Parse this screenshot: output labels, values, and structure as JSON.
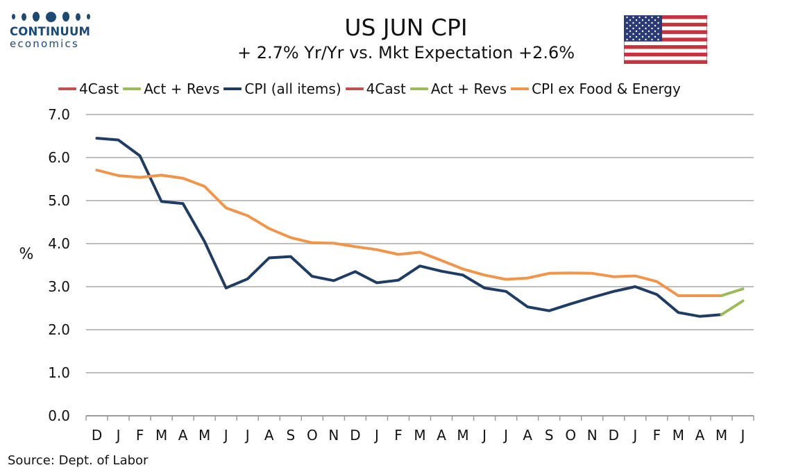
{
  "logo": {
    "name": "CONTINUUM",
    "sub": "economics",
    "color": "#1c4a74"
  },
  "title": "US JUN CPI",
  "subtitle": "+ 2.7% Yr/Yr  vs. Mkt Expectation +2.6%",
  "flag_icon": "us-flag-icon",
  "source": "Source: Dept. of Labor",
  "chart_data": {
    "type": "line",
    "categories": [
      "D",
      "J",
      "F",
      "M",
      "A",
      "M",
      "J",
      "J",
      "A",
      "S",
      "O",
      "N",
      "D",
      "J",
      "F",
      "M",
      "A",
      "M",
      "J",
      "J",
      "A",
      "S",
      "O",
      "N",
      "D",
      "J",
      "F",
      "M",
      "A",
      "M",
      "J"
    ],
    "ylabel": "%",
    "xlabel": "",
    "ylim": [
      0,
      7
    ],
    "yticks": [
      "0.0",
      "1.0",
      "2.0",
      "3.0",
      "4.0",
      "5.0",
      "6.0",
      "7.0"
    ],
    "grid": true,
    "legend_position": "top",
    "legend": [
      {
        "label": "4Cast",
        "color": "#c0504d"
      },
      {
        "label": "Act + Revs",
        "color": "#9bbb59"
      },
      {
        "label": "CPI (all items)",
        "color": "#1f3d63"
      },
      {
        "label": "4Cast",
        "color": "#c0504d"
      },
      {
        "label": "Act + Revs",
        "color": "#9bbb59"
      },
      {
        "label": "CPI ex Food & Energy",
        "color": "#f0954a"
      }
    ],
    "series": [
      {
        "name": "CPI (all items)",
        "color": "#1f3d63",
        "values": [
          6.45,
          6.41,
          6.04,
          4.98,
          4.93,
          4.05,
          2.97,
          3.18,
          3.67,
          3.7,
          3.24,
          3.14,
          3.35,
          3.09,
          3.15,
          3.48,
          3.36,
          3.27,
          2.97,
          2.89,
          2.53,
          2.44,
          2.6,
          2.75,
          2.89,
          3.0,
          2.82,
          2.4,
          2.31,
          2.35,
          null
        ]
      },
      {
        "name": "CPI ex Food & Energy",
        "color": "#f0954a",
        "values": [
          5.71,
          5.58,
          5.54,
          5.59,
          5.52,
          5.33,
          4.83,
          4.65,
          4.35,
          4.14,
          4.02,
          4.01,
          3.93,
          3.86,
          3.75,
          3.8,
          3.61,
          3.41,
          3.27,
          3.17,
          3.2,
          3.31,
          3.32,
          3.31,
          3.23,
          3.25,
          3.12,
          2.79,
          2.79,
          2.79,
          null
        ]
      },
      {
        "name": "Act + Revs",
        "color": "#9bbb59",
        "values": [
          null,
          null,
          null,
          null,
          null,
          null,
          null,
          null,
          null,
          null,
          null,
          null,
          null,
          null,
          null,
          null,
          null,
          null,
          null,
          null,
          null,
          null,
          null,
          null,
          null,
          null,
          null,
          null,
          null,
          2.35,
          2.67
        ]
      },
      {
        "name": "Act + Revs",
        "color": "#9bbb59",
        "values": [
          null,
          null,
          null,
          null,
          null,
          null,
          null,
          null,
          null,
          null,
          null,
          null,
          null,
          null,
          null,
          null,
          null,
          null,
          null,
          null,
          null,
          null,
          null,
          null,
          null,
          null,
          null,
          null,
          null,
          2.79,
          2.95
        ]
      }
    ]
  }
}
